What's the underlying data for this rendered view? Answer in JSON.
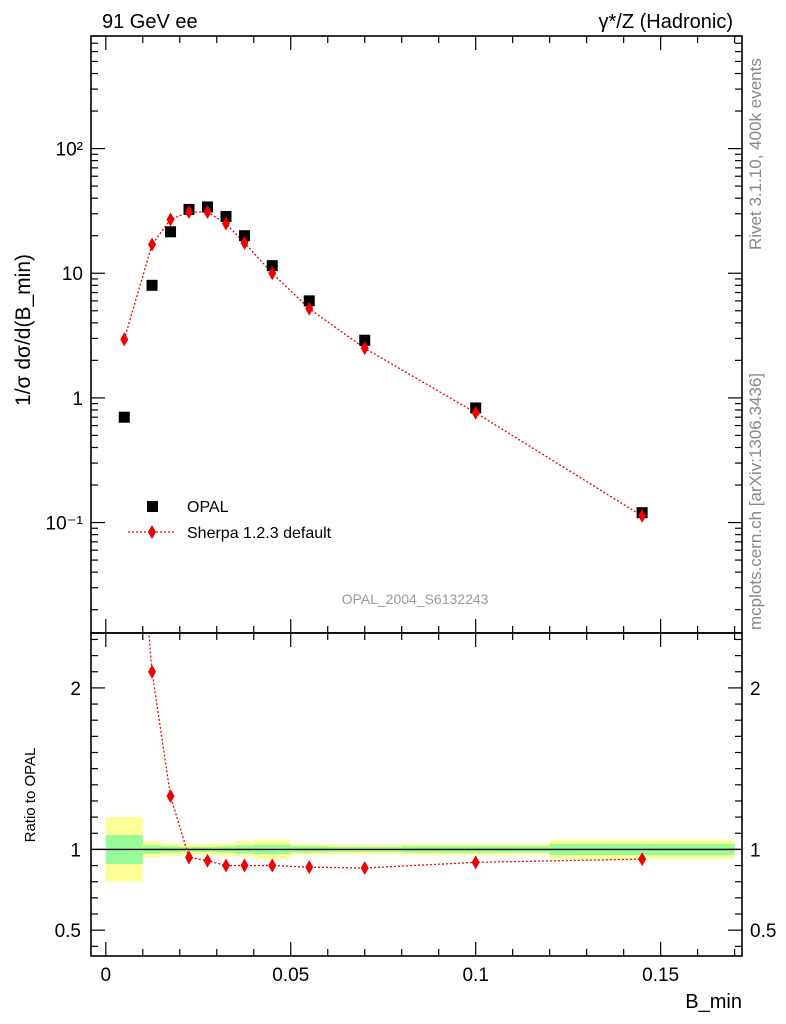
{
  "header": {
    "left": "91 GeV ee",
    "right": "γ*/Z (Hadronic)"
  },
  "side_labels": {
    "rivet": "Rivet 3.1.10,  400k events",
    "mcplots": "mcplots.cern.ch [arXiv:1306.3436]"
  },
  "chart_data": [
    {
      "type": "scatter",
      "title": "",
      "xlabel": "B_min",
      "ylabel": "1/σ dσ/d(B_min)",
      "yscale": "log",
      "xlim": [
        -0.004,
        0.172
      ],
      "ylim": [
        0.013,
        800
      ],
      "analysis_label": "OPAL_2004_S6132243",
      "y_tick_labels": [
        "10⁻¹",
        "1",
        "10",
        "10²"
      ],
      "y_tick_values": [
        0.1,
        1,
        10,
        100
      ],
      "legend": {
        "placement": "bottom-left"
      },
      "x": [
        0.005,
        0.0125,
        0.0175,
        0.0225,
        0.0275,
        0.0325,
        0.0375,
        0.045,
        0.055,
        0.07,
        0.1,
        0.145
      ],
      "x_bin_edges": [
        0,
        0.01,
        0.015,
        0.02,
        0.025,
        0.03,
        0.035,
        0.04,
        0.05,
        0.06,
        0.08,
        0.12,
        0.17
      ],
      "series": [
        {
          "name": "OPAL",
          "color": "#000000",
          "marker": "square",
          "values": [
            0.7,
            8.0,
            21.5,
            32.5,
            34.0,
            28.5,
            20.0,
            11.5,
            6.0,
            2.9,
            0.83,
            0.12
          ]
        },
        {
          "name": "Sherpa 1.2.3 default",
          "color": "#ee0000",
          "marker": "diamond",
          "line": "dotted",
          "values": [
            2.95,
            17.0,
            27.0,
            31.0,
            31.0,
            25.0,
            17.5,
            10.0,
            5.2,
            2.5,
            0.76,
            0.113
          ]
        }
      ]
    },
    {
      "type": "scatter",
      "title": "",
      "xlabel": "B_min",
      "ylabel": "Ratio to OPAL",
      "xlim": [
        -0.004,
        0.172
      ],
      "ylim": [
        0.34,
        2.34
      ],
      "x_tick_labels": [
        "0",
        "0.05",
        "0.1",
        "0.15"
      ],
      "x_tick_values": [
        0,
        0.05,
        0.1,
        0.15
      ],
      "y_tick_labels": [
        "0.5",
        "1",
        "2"
      ],
      "y_tick_values": [
        0.5,
        1,
        2
      ],
      "x": [
        0.0125,
        0.0175,
        0.0225,
        0.0275,
        0.0325,
        0.0375,
        0.045,
        0.055,
        0.07,
        0.1,
        0.145
      ],
      "series": [
        {
          "name": "Sherpa 1.2.3 default",
          "color": "#ee0000",
          "marker": "diamond",
          "line": "dotted",
          "values": [
            2.1,
            1.33,
            0.95,
            0.93,
            0.9,
            0.9,
            0.9,
            0.89,
            0.885,
            0.92,
            0.94
          ]
        }
      ],
      "offscale_first_point": {
        "x": 0.005,
        "value": 4.2
      },
      "uncertainty_bands": {
        "bin_edges": [
          0,
          0.01,
          0.015,
          0.02,
          0.025,
          0.03,
          0.035,
          0.04,
          0.05,
          0.06,
          0.08,
          0.12,
          0.17
        ],
        "inner_color": "#98fb98",
        "outer_color": "#ffff99",
        "inner_low": [
          0.91,
          0.975,
          0.98,
          0.985,
          0.985,
          0.98,
          0.975,
          0.97,
          0.98,
          0.985,
          0.98,
          0.965
        ],
        "inner_high": [
          1.09,
          1.025,
          1.02,
          1.015,
          1.015,
          1.02,
          1.025,
          1.03,
          1.02,
          1.015,
          1.02,
          1.035
        ],
        "outer_low": [
          0.8,
          0.95,
          0.96,
          0.965,
          0.965,
          0.96,
          0.955,
          0.94,
          0.965,
          0.97,
          0.965,
          0.94
        ],
        "outer_high": [
          1.2,
          1.05,
          1.04,
          1.035,
          1.035,
          1.04,
          1.05,
          1.06,
          1.035,
          1.03,
          1.035,
          1.06
        ]
      }
    }
  ]
}
